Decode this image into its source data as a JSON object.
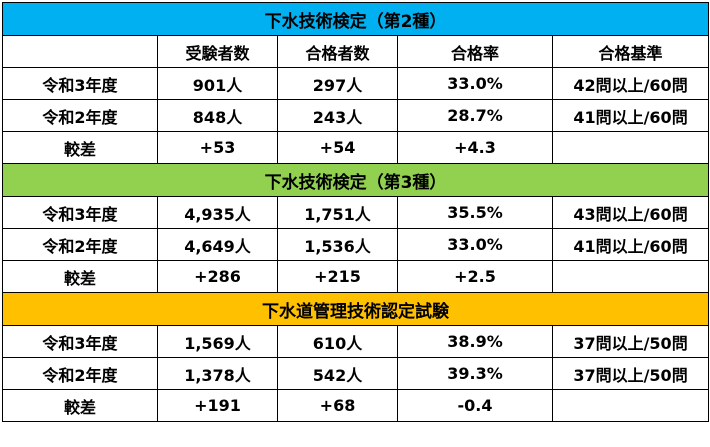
{
  "columns": [
    "",
    "受験者数",
    "合格者数",
    "合格率",
    "合格基準"
  ],
  "sections": [
    {
      "title": "下水技術検定（第2種）",
      "rows": [
        {
          "label": "令和3年度",
          "examinees": "901人",
          "passers": "297人",
          "rate": "33.0%",
          "criteria": "42問以上/60問"
        },
        {
          "label": "令和2年度",
          "examinees": "848人",
          "passers": "243人",
          "rate": "28.7%",
          "criteria": "41問以上/60問"
        },
        {
          "label": "較差",
          "examinees": "+53",
          "passers": "+54",
          "rate": "+4.3",
          "criteria": ""
        }
      ]
    },
    {
      "title": "下水技術検定（第3種）",
      "rows": [
        {
          "label": "令和3年度",
          "examinees": "4,935人",
          "passers": "1,751人",
          "rate": "35.5%",
          "criteria": "43問以上/60問"
        },
        {
          "label": "令和2年度",
          "examinees": "4,649人",
          "passers": "1,536人",
          "rate": "33.0%",
          "criteria": "41問以上/60問"
        },
        {
          "label": "較差",
          "examinees": "+286",
          "passers": "+215",
          "rate": "+2.5",
          "criteria": ""
        }
      ]
    },
    {
      "title": "下水道管理技術認定試験",
      "rows": [
        {
          "label": "令和3年度",
          "examinees": "1,569人",
          "passers": "610人",
          "rate": "38.9%",
          "criteria": "37問以上/50問"
        },
        {
          "label": "令和2年度",
          "examinees": "1,378人",
          "passers": "542人",
          "rate": "39.3%",
          "criteria": "37問以上/50問"
        },
        {
          "label": "較差",
          "examinees": "+191",
          "passers": "+68",
          "rate": "-0.4",
          "criteria": ""
        }
      ]
    }
  ],
  "colors": {
    "section_1": "#00b0f0",
    "section_2": "#92d050",
    "section_3": "#ffc000"
  }
}
